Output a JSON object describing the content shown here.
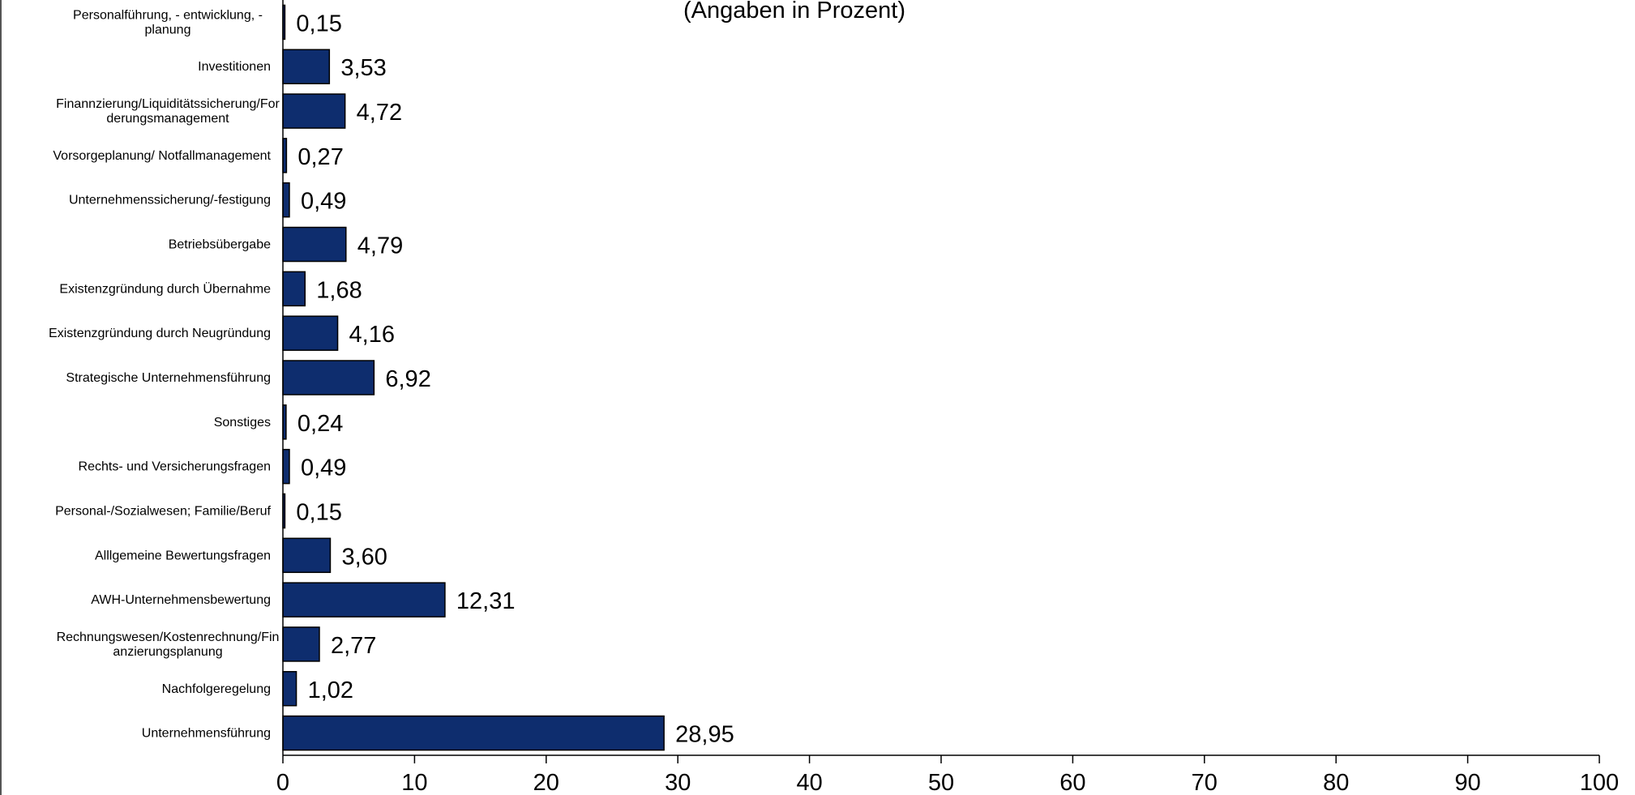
{
  "chart_data": {
    "type": "bar",
    "orientation": "horizontal",
    "subtitle": "(Angaben in Prozent)",
    "xlim": [
      0,
      100
    ],
    "xticks": [
      "0",
      "10",
      "20",
      "30",
      "40",
      "50",
      "60",
      "70",
      "80",
      "90",
      "100"
    ],
    "bar_color": "#0E2D6E",
    "grid": false,
    "categories": [
      [
        "Personalführung, - entwicklung, -",
        "planung"
      ],
      [
        "Investitionen"
      ],
      [
        "Finannzierung/Liquiditätssicherung/For",
        "derungsmanagement"
      ],
      [
        "Vorsorgeplanung/ Notfallmanagement"
      ],
      [
        "Unternehmenssicherung/-festigung"
      ],
      [
        "Betriebsübergabe"
      ],
      [
        "Existenzgründung durch Übernahme"
      ],
      [
        "Existenzgründung durch Neugründung"
      ],
      [
        "Strategische Unternehmensführung"
      ],
      [
        "Sonstiges"
      ],
      [
        "Rechts- und Versicherungsfragen"
      ],
      [
        "Personal-/Sozialwesen; Familie/Beruf"
      ],
      [
        "Alllgemeine Bewertungsfragen"
      ],
      [
        "AWH-Unternehmensbewertung"
      ],
      [
        "Rechnungswesen/Kostenrechnung/Fin",
        "anzierungsplanung"
      ],
      [
        "Nachfolgeregelung"
      ],
      [
        "Unternehmensführung"
      ]
    ],
    "values": [
      0.15,
      3.53,
      4.72,
      0.27,
      0.49,
      4.79,
      1.68,
      4.16,
      6.92,
      0.24,
      0.49,
      0.15,
      3.6,
      12.31,
      2.77,
      1.02,
      28.95
    ],
    "value_labels": [
      "0,15",
      "3,53",
      "4,72",
      "0,27",
      "0,49",
      "4,79",
      "1,68",
      "4,16",
      "6,92",
      "0,24",
      "0,49",
      "0,15",
      "3,60",
      "12,31",
      "2,77",
      "1,02",
      "28,95"
    ]
  }
}
